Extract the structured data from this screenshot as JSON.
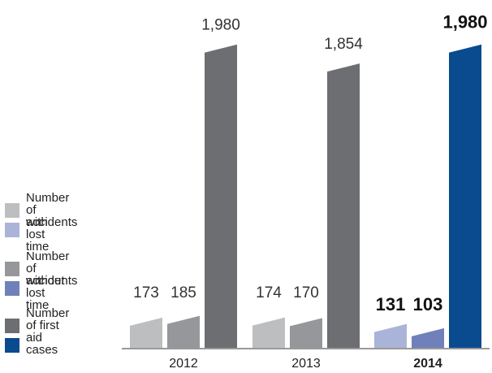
{
  "chart_data": {
    "type": "bar",
    "categories": [
      "2012",
      "2013",
      "2014"
    ],
    "highlight_category": "2014",
    "series": [
      {
        "name": "Number of accidents with lost time",
        "values": [
          173,
          174,
          131
        ],
        "colors": [
          "#bdbec0",
          "#bdbec0",
          "#aab4d8"
        ]
      },
      {
        "name": "Number of accidents without lost time",
        "values": [
          185,
          170,
          103
        ],
        "colors": [
          "#96979a",
          "#96979a",
          "#7080ba"
        ]
      },
      {
        "name": "Number of first aid cases",
        "values": [
          1980,
          1854,
          1980
        ],
        "colors": [
          "#6d6e71",
          "#6d6e71",
          "#0a4a8f"
        ]
      }
    ],
    "value_labels": [
      [
        "173",
        "185",
        "1,980"
      ],
      [
        "174",
        "170",
        "1,854"
      ],
      [
        "131",
        "103",
        "1,980"
      ]
    ],
    "ylim": [
      0,
      2100
    ],
    "grid": false,
    "legend_position": "left"
  },
  "legend": {
    "groups": [
      {
        "text": "Number\nof accidents",
        "sub": "with lost time",
        "color_top": "#bdbec0",
        "color_bottom": "#aab4d8"
      },
      {
        "text": "Number\nof accidents",
        "sub": "without lost time",
        "color_top": "#96979a",
        "color_bottom": "#7080ba"
      },
      {
        "text": "Number\nof first",
        "sub": "aid cases",
        "color_top": "#6d6e71",
        "color_bottom": "#0a4a8f"
      }
    ]
  }
}
